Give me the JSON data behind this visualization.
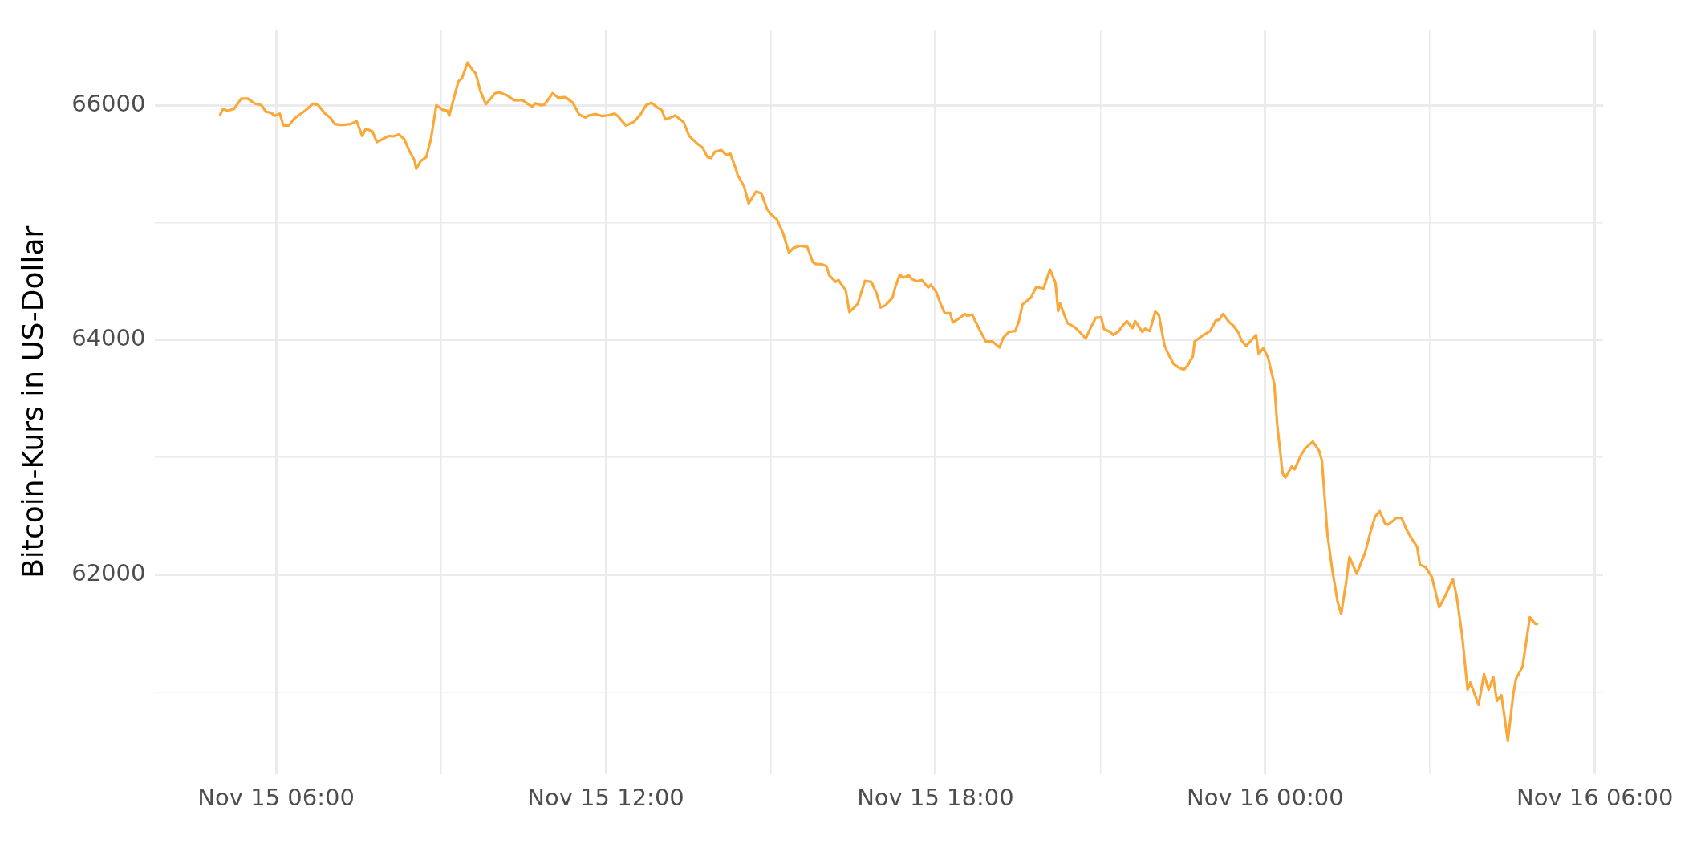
{
  "chart_data": {
    "type": "line",
    "ylabel": "Bitcoin-Kurs in US-Dollar",
    "x": [
      "--11-15T04:59",
      "--11-15T05:02",
      "--11-15T05:07",
      "--11-15T05:14",
      "--11-15T05:22",
      "--11-15T05:29",
      "--11-15T05:37",
      "--11-15T05:44",
      "--11-15T05:49",
      "--11-15T05:54",
      "--11-15T05:59",
      "--11-15T06:04",
      "--11-15T06:08",
      "--11-15T06:14",
      "--11-15T06:20",
      "--11-15T06:28",
      "--11-15T06:34",
      "--11-15T06:40",
      "--11-15T06:46",
      "--11-15T06:53",
      "--11-15T06:59",
      "--11-15T07:04",
      "--11-15T07:12",
      "--11-15T07:21",
      "--11-15T07:28",
      "--11-15T07:34",
      "--11-15T07:38",
      "--11-15T07:45",
      "--11-15T07:50",
      "--11-15T07:56",
      "--11-15T08:03",
      "--11-15T08:08",
      "--11-15T08:14",
      "--11-15T08:20",
      "--11-15T08:25",
      "--11-15T08:31",
      "--11-15T08:33",
      "--11-15T08:38",
      "--11-15T08:44",
      "--11-15T08:49",
      "--11-15T08:55",
      "--11-15T09:02",
      "--11-15T09:07",
      "--11-15T09:09",
      "--11-15T09:19",
      "--11-15T09:23",
      "--11-15T09:29",
      "--11-15T09:35",
      "--11-15T09:38",
      "--11-15T09:43",
      "--11-15T09:49",
      "--11-15T09:56",
      "--11-15T09:59",
      "--11-15T10:04",
      "--11-15T10:13",
      "--11-15T10:20",
      "--11-15T10:29",
      "--11-15T10:35",
      "--11-15T10:40",
      "--11-15T10:43",
      "--11-15T10:49",
      "--11-15T10:53",
      "--11-15T11:02",
      "--11-15T11:08",
      "--11-15T11:16",
      "--11-15T11:24",
      "--11-15T11:31",
      "--11-15T11:38",
      "--11-15T11:41",
      "--11-15T11:49",
      "--11-15T11:56",
      "--11-15T12:03",
      "--11-15T12:10",
      "--11-15T12:14",
      "--11-15T12:22",
      "--11-15T12:30",
      "--11-15T12:37",
      "--11-15T12:44",
      "--11-15T12:50",
      "--11-15T12:57",
      "--11-15T13:01",
      "--11-15T13:05",
      "--11-15T13:11",
      "--11-15T13:16",
      "--11-15T13:25",
      "--11-15T13:31",
      "--11-15T13:39",
      "--11-15T13:46",
      "--11-15T13:51",
      "--11-15T13:55",
      "--11-15T13:59",
      "--11-15T14:06",
      "--11-15T14:11",
      "--11-15T14:16",
      "--11-15T14:22",
      "--11-15T14:24",
      "--11-15T14:31",
      "--11-15T14:36",
      "--11-15T14:44",
      "--11-15T14:50",
      "--11-15T14:56",
      "--11-15T15:01",
      "--11-15T15:07",
      "--11-15T15:14",
      "--11-15T15:20",
      "--11-15T15:25",
      "--11-15T15:32",
      "--11-15T15:40",
      "--11-15T15:46",
      "--11-15T15:49",
      "--11-15T15:56",
      "--11-15T16:01",
      "--11-15T16:04",
      "--11-15T16:11",
      "--11-15T16:14",
      "--11-15T16:22",
      "--11-15T16:26",
      "--11-15T16:35",
      "--11-15T16:43",
      "--11-15T16:50",
      "--11-15T16:56",
      "--11-15T17:00",
      "--11-15T17:05",
      "--11-15T17:13",
      "--11-15T17:16",
      "--11-15T17:21",
      "--11-15T17:25",
      "--11-15T17:31",
      "--11-15T17:34",
      "--11-15T17:40",
      "--11-15T17:45",
      "--11-15T17:52",
      "--11-15T17:55",
      "--11-15T18:01",
      "--11-15T18:05",
      "--11-15T18:10",
      "--11-15T18:16",
      "--11-15T18:19",
      "--11-15T18:26",
      "--11-15T18:32",
      "--11-15T18:35",
      "--11-15T18:40",
      "--11-15T18:48",
      "--11-15T18:55",
      "--11-15T19:02",
      "--11-15T19:10",
      "--11-15T19:14",
      "--11-15T19:20",
      "--11-15T19:27",
      "--11-15T19:31",
      "--11-15T19:35",
      "--11-15T19:44",
      "--11-15T19:50",
      "--11-15T19:58",
      "--11-15T20:05",
      "--11-15T20:11",
      "--11-15T20:14",
      "--11-15T20:16",
      "--11-15T20:24",
      "--11-15T20:32",
      "--11-15T20:39",
      "--11-15T20:44",
      "--11-15T20:49",
      "--11-15T20:55",
      "--11-15T21:01",
      "--11-15T21:04",
      "--11-15T21:11",
      "--11-15T21:14",
      "--11-15T21:20",
      "--11-15T21:23",
      "--11-15T21:29",
      "--11-15T21:35",
      "--11-15T21:38",
      "--11-15T21:46",
      "--11-15T21:49",
      "--11-15T21:54",
      "--11-15T22:00",
      "--11-15T22:04",
      "--11-15T22:10",
      "--11-15T22:14",
      "--11-15T22:20",
      "--11-15T22:26",
      "--11-15T22:31",
      "--11-15T22:35",
      "--11-15T22:41",
      "--11-15T22:43",
      "--11-15T22:53",
      "--11-15T23:00",
      "--11-15T23:06",
      "--11-15T23:10",
      "--11-15T23:14",
      "--11-15T23:21",
      "--11-15T23:25",
      "--11-15T23:31",
      "--11-15T23:34",
      "--11-15T23:39",
      "--11-15T23:44",
      "--11-15T23:50",
      "--11-15T23:53",
      "--11-15T23:58",
      "--11-16T00:03",
      "--11-16T00:10",
      "--11-16T00:13",
      "--11-16T00:19",
      "--11-16T00:22",
      "--11-16T00:29",
      "--11-16T00:32",
      "--11-16T00:40",
      "--11-16T00:44",
      "--11-16T00:52",
      "--11-16T00:59",
      "--11-16T01:02",
      "--11-16T01:08",
      "--11-16T01:13",
      "--11-16T01:19",
      "--11-16T01:23",
      "--11-16T01:28",
      "--11-16T01:32",
      "--11-16T01:40",
      "--11-16T01:46",
      "--11-16T01:49",
      "--11-16T01:55",
      "--11-16T02:00",
      "--11-16T02:05",
      "--11-16T02:11",
      "--11-16T02:14",
      "--11-16T02:20",
      "--11-16T02:23",
      "--11-16T02:29",
      "--11-16T02:34",
      "--11-16T02:41",
      "--11-16T02:46",
      "--11-16T02:49",
      "--11-16T02:55",
      "--11-16T03:02",
      "--11-16T03:10",
      "--11-16T03:16",
      "--11-16T03:25",
      "--11-16T03:29",
      "--11-16T03:35",
      "--11-16T03:41",
      "--11-16T03:44",
      "--11-16T03:53",
      "--11-16T03:59",
      "--11-16T04:04",
      "--11-16T04:09",
      "--11-16T04:13",
      "--11-16T04:18",
      "--11-16T04:25",
      "--11-16T04:31",
      "--11-16T04:34",
      "--11-16T04:41",
      "--11-16T04:49",
      "--11-16T04:55",
      "--11-16T04:57"
    ],
    "series": [
      {
        "color": "#fba83a",
        "values": [
          65920,
          65968,
          65952,
          65968,
          66056,
          66056,
          66012,
          66000,
          65944,
          65936,
          65911,
          65928,
          65827,
          65827,
          65887,
          65932,
          65968,
          66012,
          66000,
          65932,
          65895,
          65839,
          65831,
          65839,
          65863,
          65738,
          65799,
          65779,
          65686,
          65710,
          65738,
          65734,
          65751,
          65710,
          65618,
          65533,
          65457,
          65525,
          65557,
          65710,
          66000,
          65960,
          65952,
          65911,
          66201,
          66229,
          66362,
          66294,
          66270,
          66121,
          66008,
          66072,
          66101,
          66109,
          66080,
          66040,
          66044,
          66008,
          65988,
          66016,
          66000,
          66004,
          66101,
          66064,
          66068,
          66020,
          65920,
          65895,
          65911,
          65924,
          65907,
          65915,
          65928,
          65899,
          65827,
          65855,
          65911,
          66000,
          66020,
          65976,
          65960,
          65879,
          65895,
          65911,
          65855,
          65738,
          65678,
          65634,
          65557,
          65549,
          65602,
          65618,
          65577,
          65586,
          65457,
          65404,
          65308,
          65163,
          65264,
          65248,
          65115,
          65066,
          65026,
          64899,
          64744,
          64785,
          64801,
          64793,
          64664,
          64648,
          64644,
          64628,
          64551,
          64495,
          64511,
          64423,
          64237,
          64306,
          64503,
          64495,
          64390,
          64276,
          64293,
          64358,
          64447,
          64555,
          64531,
          64551,
          64519,
          64499,
          64511,
          64447,
          64471,
          64406,
          64318,
          64229,
          64229,
          64149,
          64185,
          64221,
          64205,
          64217,
          64089,
          63988,
          63988,
          63936,
          64020,
          64068,
          64076,
          64157,
          64302,
          64358,
          64451,
          64439,
          64600,
          64487,
          64245,
          64310,
          64145,
          64109,
          64056,
          64012,
          64097,
          64189,
          64193,
          64093,
          64068,
          64044,
          64072,
          64109,
          64161,
          64101,
          64161,
          64068,
          64097,
          64076,
          64241,
          64209,
          63956,
          63883,
          63795,
          63763,
          63747,
          63779,
          63859,
          63988,
          64044,
          64076,
          64165,
          64173,
          64221,
          64149,
          64125,
          64060,
          63996,
          63948,
          63990,
          64043,
          63881,
          63929,
          63853,
          63625,
          63292,
          62865,
          62827,
          62922,
          62898,
          63031,
          63078,
          63135,
          63055,
          62969,
          62342,
          62057,
          61772,
          61667,
          61914,
          62152,
          62009,
          62128,
          62185,
          62366,
          62494,
          62541,
          62437,
          62427,
          62461,
          62484,
          62484,
          62389,
          62294,
          62237,
          62085,
          62066,
          61981,
          61724,
          61810,
          61962,
          61819,
          61487,
          61021,
          61083,
          60893,
          61154,
          61021,
          61130,
          60926,
          60974,
          60584,
          60988,
          61116,
          61216,
          61639,
          61582,
          61582
        ]
      }
    ],
    "xlim": [
      "--11-15T03:48",
      "--11-16T06:09"
    ],
    "xticks": [
      {
        "value": "--11-15T06:00",
        "label": "Nov 15 06:00"
      },
      {
        "value": "--11-15T09:00",
        "label": null
      },
      {
        "value": "--11-15T12:00",
        "label": "Nov 15 12:00"
      },
      {
        "value": "--11-15T15:00",
        "label": null
      },
      {
        "value": "--11-15T18:00",
        "label": "Nov 15 18:00"
      },
      {
        "value": "--11-15T21:00",
        "label": null
      },
      {
        "value": "--11-16T00:00",
        "label": "Nov 16 00:00"
      },
      {
        "value": "--11-16T03:00",
        "label": null
      },
      {
        "value": "--11-16T06:00",
        "label": "Nov 16 06:00"
      }
    ],
    "ylim": [
      60300,
      66640
    ],
    "yticks": [
      {
        "value": 61000,
        "label": null
      },
      62000,
      {
        "value": 63000,
        "label": null
      },
      64000,
      {
        "value": 65000,
        "label": null
      },
      66000
    ],
    "grid": true,
    "marker": "none",
    "line_style": "solid"
  }
}
